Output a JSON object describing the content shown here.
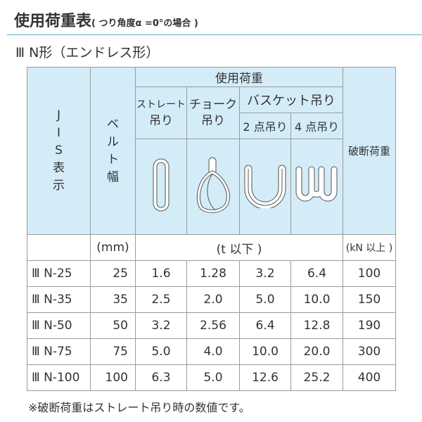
{
  "title": "使用荷重表",
  "title_note": "( つり角度α =0°の場合 )",
  "subtitle": "Ⅲ N形（エンドレス形）",
  "header": {
    "jis": [
      "J",
      "I",
      "S",
      "表",
      "示"
    ],
    "belt": [
      "ベ",
      "ル",
      "ト",
      "幅"
    ],
    "load": "使用荷重",
    "straight": [
      "ストレート",
      "吊り"
    ],
    "choke": [
      "チョーク",
      "吊り"
    ],
    "basket": "バスケット吊り",
    "two_point": "2 点吊り",
    "four_point": "4 点吊り",
    "break": "破断荷重"
  },
  "units": {
    "belt": "(mm)",
    "load": "(t 以下 )",
    "break": "(kN 以上 )"
  },
  "rows": [
    [
      "Ⅲ N-25",
      "25",
      "1.6",
      "1.28",
      "3.2",
      "6.4",
      "100"
    ],
    [
      "Ⅲ N-35",
      "35",
      "2.5",
      "2.0",
      "5.0",
      "10.0",
      "150"
    ],
    [
      "Ⅲ N-50",
      "50",
      "3.2",
      "2.56",
      "6.4",
      "12.8",
      "190"
    ],
    [
      "Ⅲ N-75",
      "75",
      "5.0",
      "4.0",
      "10.0",
      "20.0",
      "300"
    ],
    [
      "Ⅲ N-100",
      "100",
      "6.3",
      "5.0",
      "12.6",
      "25.2",
      "400"
    ]
  ],
  "footnote": "※破断荷重はストレート吊り時の数値です。"
}
